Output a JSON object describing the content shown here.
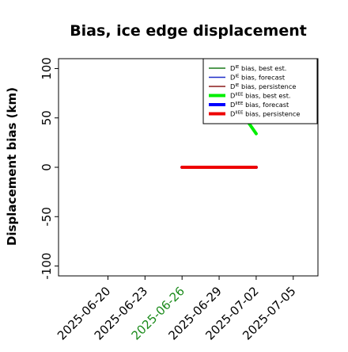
{
  "chart_data": {
    "type": "line",
    "title": "Bias, ice edge displacement",
    "ylabel": "Displacement bias (km)",
    "xlabel": "",
    "ylim": [
      -110,
      110
    ],
    "xlim": [
      "2025-06-16",
      "2025-07-07"
    ],
    "x_ticks": [
      "2025-06-20",
      "2025-06-23",
      "2025-06-26",
      "2025-06-29",
      "2025-07-02",
      "2025-07-05"
    ],
    "highlighted_tick": "2025-06-26",
    "highlight_color": "#1a8a1a",
    "y_ticks": [
      100,
      50,
      0,
      -50,
      -100
    ],
    "grid": false,
    "legend_position": "top-right",
    "series": [
      {
        "name": "D^IE bias, best est.",
        "legend_main": "D",
        "legend_sup": "IE",
        "legend_rest": " bias, best est.",
        "color": "#1a7a1a",
        "width": "thin",
        "x": [],
        "y": []
      },
      {
        "name": "D^IE bias, forecast",
        "legend_main": "D",
        "legend_sup": "IE",
        "legend_rest": " bias, forecast",
        "color": "#1f2ec8",
        "width": "thin",
        "x": [],
        "y": []
      },
      {
        "name": "D^IE bias, persistence",
        "legend_main": "D",
        "legend_sup": "IE",
        "legend_rest": " bias, persistence",
        "color": "#8b1a1a",
        "width": "thin",
        "x": [],
        "y": []
      },
      {
        "name": "D^IIEE bias, best est.",
        "legend_main": "D",
        "legend_sup": "IIEE",
        "legend_rest": " bias, best est.",
        "color": "#00ee00",
        "width": "thick",
        "x": [
          "2025-07-01",
          "2025-07-02"
        ],
        "y": [
          52,
          34
        ]
      },
      {
        "name": "D^IIEE bias, forecast",
        "legend_main": "D",
        "legend_sup": "IIEE",
        "legend_rest": " bias, forecast",
        "color": "#0000ff",
        "width": "thick",
        "x": [
          "2025-06-26",
          "2025-07-02"
        ],
        "y": [
          0,
          0
        ]
      },
      {
        "name": "D^IIEE bias, persistence",
        "legend_main": "D",
        "legend_sup": "IIEE",
        "legend_rest": " bias, persistence",
        "color": "#ee0000",
        "width": "thick",
        "x": [
          "2025-06-26",
          "2025-07-02"
        ],
        "y": [
          0,
          0
        ]
      }
    ]
  }
}
